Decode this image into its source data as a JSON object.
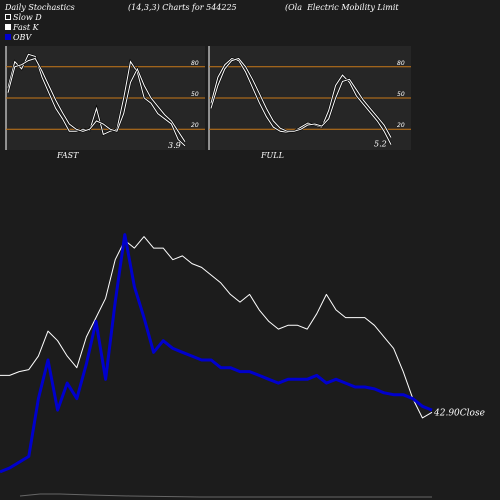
{
  "header": {
    "title": "Daily Stochastics",
    "params": "(14,3,3) Charts for 544225",
    "company": "(Ola  Electric Mobility Limit"
  },
  "legend": [
    {
      "label": "Slow  D",
      "color": "#ffffff",
      "style": "open-square"
    },
    {
      "label": "Fast K",
      "color": "#ffffff",
      "style": "filled-square"
    },
    {
      "label": "OBV",
      "color": "#0000cc",
      "style": "filled-square"
    }
  ],
  "colors": {
    "background": "#1c1c1c",
    "panel_background": "#262626",
    "level_line": "#c87818",
    "price_line": "#ffffff",
    "obv_line": "#0000cc"
  },
  "chart_data": [
    {
      "type": "line",
      "title": "FAST",
      "ylim": [
        0,
        100
      ],
      "levels": [
        20,
        50,
        80
      ],
      "ticks": [
        "80",
        "50",
        "20"
      ],
      "last_value_label": "3.9",
      "series": [
        {
          "name": "Fast K",
          "values": [
            60,
            85,
            78,
            92,
            90,
            70,
            55,
            40,
            30,
            18,
            18,
            20,
            19,
            40,
            15,
            18,
            20,
            50,
            85,
            75,
            50,
            45,
            35,
            30,
            25,
            10,
            3.9
          ]
        },
        {
          "name": "Slow  D",
          "values": [
            55,
            80,
            82,
            86,
            88,
            76,
            62,
            48,
            36,
            25,
            20,
            18,
            20,
            28,
            25,
            20,
            18,
            35,
            65,
            78,
            62,
            50,
            42,
            34,
            28,
            18,
            8
          ]
        }
      ]
    },
    {
      "type": "line",
      "title": "FULL",
      "ylim": [
        0,
        100
      ],
      "levels": [
        20,
        50,
        80
      ],
      "ticks": [
        "80",
        "50",
        "20"
      ],
      "last_value_label": "5.2",
      "series": [
        {
          "name": "Fast K",
          "values": [
            45,
            70,
            82,
            88,
            86,
            75,
            60,
            45,
            32,
            22,
            18,
            17,
            18,
            22,
            26,
            24,
            22,
            38,
            62,
            72,
            65,
            52,
            44,
            36,
            28,
            18,
            5.2
          ]
        },
        {
          "name": "Slow  D",
          "values": [
            40,
            62,
            78,
            86,
            88,
            80,
            68,
            54,
            40,
            28,
            21,
            18,
            18,
            20,
            24,
            25,
            23,
            30,
            50,
            66,
            68,
            58,
            48,
            40,
            32,
            24,
            12
          ]
        }
      ]
    },
    {
      "type": "line",
      "last_value_label": "42.90Close",
      "series": [
        {
          "name": "Close",
          "values": [
            62,
            62,
            64,
            65,
            72,
            85,
            80,
            72,
            66,
            82,
            92,
            102,
            122,
            132,
            128,
            134,
            128,
            128,
            122,
            124,
            120,
            118,
            114,
            110,
            104,
            100,
            104,
            96,
            90,
            86,
            88,
            88,
            86,
            94,
            104,
            96,
            92,
            92,
            92,
            88,
            82,
            76,
            64,
            50,
            40,
            42.9
          ]
        },
        {
          "name": "OBV",
          "values": [
            12,
            14,
            17,
            20,
            50,
            70,
            44,
            58,
            50,
            68,
            90,
            60,
            100,
            135,
            108,
            92,
            74,
            80,
            76,
            74,
            72,
            70,
            70,
            66,
            66,
            64,
            64,
            62,
            60,
            58,
            60,
            60,
            60,
            62,
            58,
            60,
            58,
            56,
            56,
            55,
            53,
            52,
            52,
            50,
            46,
            44
          ]
        }
      ]
    }
  ]
}
